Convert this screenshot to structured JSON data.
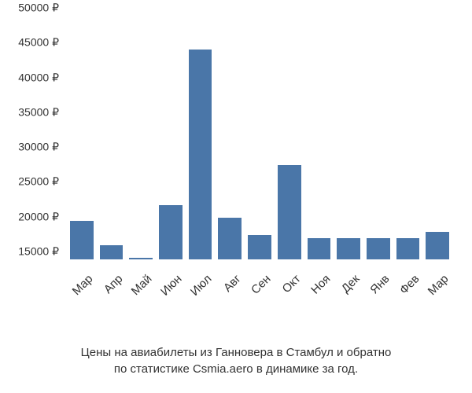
{
  "chart": {
    "type": "bar",
    "bar_color": "#4a76a8",
    "background_color": "#ffffff",
    "text_color": "#333333",
    "y_axis": {
      "min": 15000,
      "max": 50000,
      "tick_step": 5000,
      "currency_suffix": " ₽",
      "ticks": [
        {
          "value": 15000,
          "label": "15000 ₽"
        },
        {
          "value": 20000,
          "label": "20000 ₽"
        },
        {
          "value": 25000,
          "label": "25000 ₽"
        },
        {
          "value": 30000,
          "label": "30000 ₽"
        },
        {
          "value": 35000,
          "label": "35000 ₽"
        },
        {
          "value": 40000,
          "label": "40000 ₽"
        },
        {
          "value": 45000,
          "label": "45000 ₽"
        },
        {
          "value": 50000,
          "label": "50000 ₽"
        }
      ]
    },
    "categories": [
      "Мар",
      "Апр",
      "Май",
      "Июн",
      "Июл",
      "Авг",
      "Сен",
      "Окт",
      "Ноя",
      "Дек",
      "Янв",
      "Фев",
      "Мар"
    ],
    "values": [
      20500,
      17000,
      15200,
      22800,
      45200,
      21000,
      18500,
      28600,
      18000,
      18000,
      18000,
      18000,
      19000
    ],
    "bar_width_ratio": 0.7,
    "label_fontsize": 14,
    "x_label_rotation": -45
  },
  "caption": {
    "line1": "Цены на авиабилеты из Ганновера в Стамбул и обратно",
    "line2": "по статистике Csmia.aero в динамике за год.",
    "fontsize": 15
  }
}
